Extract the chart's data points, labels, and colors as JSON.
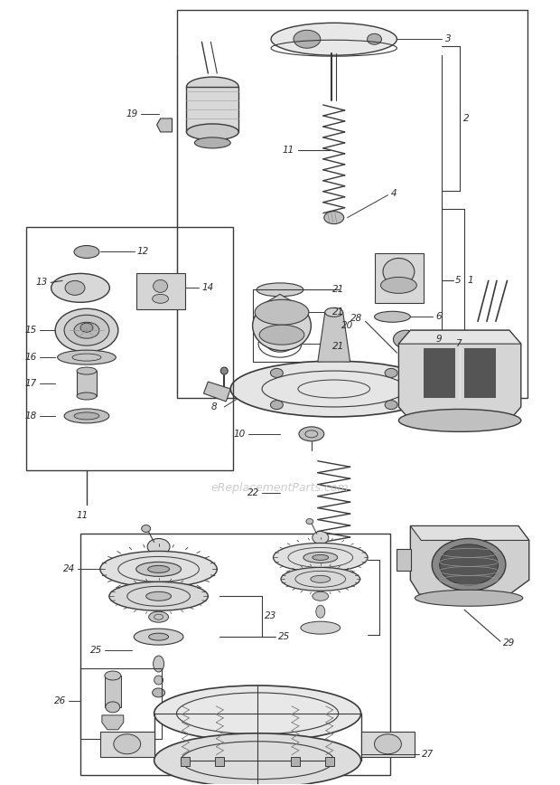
{
  "fig_width": 6.2,
  "fig_height": 8.68,
  "dpi": 100,
  "bg": "#ffffff",
  "lc": "#3a3a3a",
  "tc": "#2a2a2a",
  "wm_text": "eReplacementParts.com",
  "wm_color": "#c0c0c0"
}
